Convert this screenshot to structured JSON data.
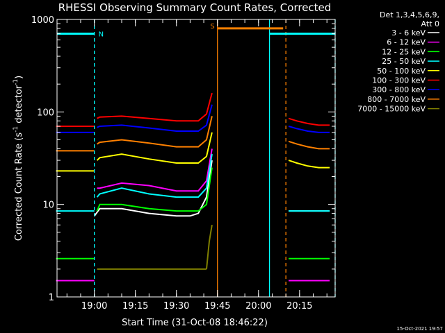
{
  "chart_data": {
    "type": "line",
    "title": "RHESSI Observing Summary Count Rates, Corrected",
    "xlabel": "Start Time (31-Oct-08 18:46:22)",
    "ylabel": "Corrected Count Rate (s",
    "ylabel_sup": "-1",
    "ylabel_mid": " detector",
    "ylabel_sup2": "-1",
    "ylabel_end": ")",
    "x_ticks": [
      "19:00",
      "19:15",
      "19:30",
      "19:45",
      "20:00",
      "20:15"
    ],
    "y_ticks": [
      "1",
      "10",
      "100",
      "1000"
    ],
    "yscale": "log",
    "ylim": [
      1,
      1000
    ],
    "x_start": "18:46:22",
    "x_end": "20:28",
    "legend": {
      "header_line1": "Det 1,3,4,5,6,9,",
      "header_line2": "Att 0",
      "placement": "right"
    },
    "series": [
      {
        "name": "3 - 6 keV",
        "color": "#ffffff",
        "segments": [
          {
            "t": [
              "19:00",
              "19:02",
              "19:10",
              "19:20",
              "19:30",
              "19:35",
              "19:38",
              "19:41",
              "19:43"
            ],
            "v": [
              7.5,
              9,
              9,
              8,
              7.5,
              7.5,
              8,
              12,
              30
            ]
          },
          {
            "t": [
              "20:11",
              "20:14",
              "20:18",
              "20:22",
              "20:26"
            ],
            "v": [
              8.5,
              8.5,
              8.5,
              8.5,
              8.5
            ]
          }
        ]
      },
      {
        "name": "6 - 12 keV",
        "color": "#ff00ff",
        "segments": [
          {
            "t": [
              "18:46",
              "18:55",
              "19:00"
            ],
            "v": [
              1.5,
              1.5,
              1.5
            ]
          },
          {
            "t": [
              "19:01",
              "19:02",
              "19:10",
              "19:20",
              "19:30",
              "19:38",
              "19:41",
              "19:43"
            ],
            "v": [
              15,
              15,
              17,
              16,
              14,
              14,
              18,
              40
            ]
          },
          {
            "t": [
              "20:11",
              "20:18",
              "20:26"
            ],
            "v": [
              1.5,
              1.5,
              1.5
            ]
          }
        ]
      },
      {
        "name": "12 - 25 keV",
        "color": "#00ff00",
        "segments": [
          {
            "t": [
              "18:46",
              "18:55",
              "19:00"
            ],
            "v": [
              2.6,
              2.6,
              2.6
            ]
          },
          {
            "t": [
              "19:01",
              "19:02",
              "19:10",
              "19:20",
              "19:30",
              "19:38",
              "19:41",
              "19:43"
            ],
            "v": [
              8.5,
              10,
              10,
              9,
              8.5,
              8.5,
              10,
              25
            ]
          },
          {
            "t": [
              "20:11",
              "20:18",
              "20:26"
            ],
            "v": [
              2.6,
              2.6,
              2.6
            ]
          }
        ]
      },
      {
        "name": "25 - 50 keV",
        "color": "#00ffff",
        "segments": [
          {
            "t": [
              "18:46",
              "18:55",
              "19:00"
            ],
            "v": [
              8.5,
              8.5,
              8.5
            ]
          },
          {
            "t": [
              "19:01",
              "19:02",
              "19:10",
              "19:20",
              "19:30",
              "19:38",
              "19:41",
              "19:43"
            ],
            "v": [
              12,
              13,
              15,
              13,
              12,
              12,
              15,
              35
            ]
          },
          {
            "t": [
              "20:11",
              "20:18",
              "20:26"
            ],
            "v": [
              8.5,
              8.5,
              8.5
            ]
          }
        ]
      },
      {
        "name": "50 - 100 keV",
        "color": "#ffff00",
        "segments": [
          {
            "t": [
              "18:46",
              "18:55",
              "19:00"
            ],
            "v": [
              23,
              23,
              23
            ]
          },
          {
            "t": [
              "19:01",
              "19:02",
              "19:10",
              "19:20",
              "19:30",
              "19:38",
              "19:41",
              "19:43"
            ],
            "v": [
              30,
              32,
              35,
              31,
              28,
              28,
              33,
              60
            ]
          },
          {
            "t": [
              "20:11",
              "20:14",
              "20:18",
              "20:22",
              "20:26"
            ],
            "v": [
              30,
              28,
              26,
              25,
              25
            ]
          }
        ]
      },
      {
        "name": "100 - 300 keV",
        "color": "#ff0000",
        "segments": [
          {
            "t": [
              "18:46",
              "18:55",
              "19:00"
            ],
            "v": [
              70,
              70,
              70
            ]
          },
          {
            "t": [
              "19:01",
              "19:02",
              "19:10",
              "19:20",
              "19:30",
              "19:38",
              "19:41",
              "19:43"
            ],
            "v": [
              85,
              88,
              90,
              85,
              80,
              80,
              95,
              160
            ]
          },
          {
            "t": [
              "20:11",
              "20:14",
              "20:18",
              "20:22",
              "20:26"
            ],
            "v": [
              85,
              80,
              75,
              72,
              72
            ]
          }
        ]
      },
      {
        "name": "300 - 800 keV",
        "color": "#0000ff",
        "segments": [
          {
            "t": [
              "18:46",
              "18:55",
              "19:00"
            ],
            "v": [
              60,
              60,
              60
            ]
          },
          {
            "t": [
              "19:01",
              "19:02",
              "19:10",
              "19:20",
              "19:30",
              "19:38",
              "19:41",
              "19:43"
            ],
            "v": [
              68,
              70,
              72,
              67,
              62,
              62,
              72,
              120
            ]
          },
          {
            "t": [
              "20:11",
              "20:14",
              "20:18",
              "20:22",
              "20:26"
            ],
            "v": [
              70,
              66,
              62,
              60,
              60
            ]
          }
        ]
      },
      {
        "name": "800 - 7000 keV",
        "color": "#ff8000",
        "segments": [
          {
            "t": [
              "18:46",
              "18:55",
              "19:00"
            ],
            "v": [
              38,
              38,
              38
            ]
          },
          {
            "t": [
              "19:01",
              "19:02",
              "19:10",
              "19:20",
              "19:30",
              "19:38",
              "19:41",
              "19:43"
            ],
            "v": [
              45,
              47,
              50,
              46,
              42,
              42,
              50,
              90
            ]
          },
          {
            "t": [
              "20:11",
              "20:14",
              "20:18",
              "20:22",
              "20:26"
            ],
            "v": [
              48,
              45,
              42,
              40,
              40
            ]
          }
        ]
      },
      {
        "name": "7000 - 15000 keV",
        "color": "#808000",
        "segments": [
          {
            "t": [
              "19:01",
              "19:20",
              "19:41"
            ],
            "v": [
              2,
              2,
              2
            ]
          },
          {
            "t": [
              "19:41",
              "19:42",
              "19:43"
            ],
            "v": [
              2,
              4,
              6
            ]
          }
        ]
      }
    ],
    "flags": [
      {
        "label": "N",
        "color": "#00ffff",
        "start": "18:46",
        "end": "19:00",
        "level": 700
      },
      {
        "label": "S",
        "color": "#ff8000",
        "start": "19:45",
        "end": "20:09",
        "level": 800
      },
      {
        "label": "",
        "color": "#00ffff",
        "start": "20:04",
        "end": "20:28",
        "level": 700
      }
    ],
    "vlines": [
      {
        "t": "19:00",
        "color": "#00ffff",
        "style": "dashed"
      },
      {
        "t": "19:45",
        "color": "#ff8000",
        "style": "solid"
      },
      {
        "t": "20:04",
        "color": "#00ffff",
        "style": "solid"
      },
      {
        "t": "20:10",
        "color": "#ff8000",
        "style": "dashed"
      },
      {
        "t": "20:28",
        "color": "#00ffff",
        "style": "dashed"
      }
    ],
    "grid": false
  },
  "footer": {
    "timestamp": "15-Oct-2021 19:57"
  }
}
